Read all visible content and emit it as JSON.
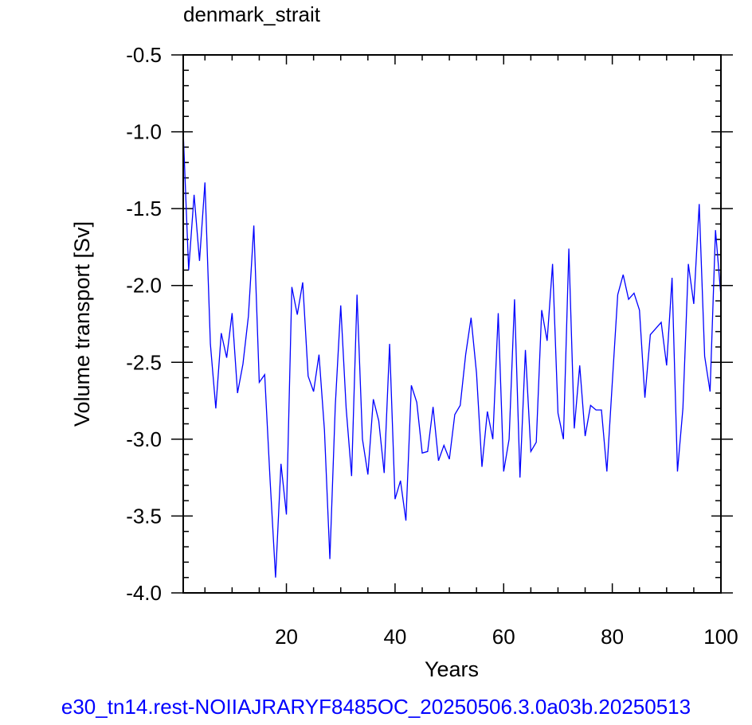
{
  "caption": "e30_tn14.rest-NOIIAJRARYF8485OC_20250506.3.0a03b.20250513",
  "colors": {
    "line": "#0000ff",
    "caption": "#0000ff",
    "axis": "#000000"
  },
  "chart_data": {
    "type": "line",
    "title": "denmark_strait",
    "xlabel": "Years",
    "ylabel": "Volume transport [Sv]",
    "xlim": [
      1,
      100
    ],
    "ylim": [
      -4.0,
      -0.5
    ],
    "xticks": [
      20,
      40,
      60,
      80,
      100
    ],
    "xtick_labels": [
      "20",
      "40",
      "60",
      "80",
      "100"
    ],
    "yticks": [
      -0.5,
      -1.0,
      -1.5,
      -2.0,
      -2.5,
      -3.0,
      -3.5,
      -4.0
    ],
    "ytick_labels": [
      "-0.5",
      "-1.0",
      "-1.5",
      "-2.0",
      "-2.5",
      "-3.0",
      "-3.5",
      "-4.0"
    ],
    "grid": false,
    "series": [
      {
        "x": [
          1,
          2,
          3,
          4,
          5,
          6,
          7,
          8,
          9,
          10,
          11,
          12,
          13,
          14,
          15,
          16,
          17,
          18,
          19,
          20,
          21,
          22,
          23,
          24,
          25,
          26,
          27,
          28,
          29,
          30,
          31,
          32,
          33,
          34,
          35,
          36,
          37,
          38,
          39,
          40,
          41,
          42,
          43,
          44,
          45,
          46,
          47,
          48,
          49,
          50,
          51,
          52,
          53,
          54,
          55,
          56,
          57,
          58,
          59,
          60,
          61,
          62,
          63,
          64,
          65,
          66,
          67,
          68,
          69,
          70,
          71,
          72,
          73,
          74,
          75,
          76,
          77,
          78,
          79,
          80,
          81,
          82,
          83,
          84,
          85,
          86,
          87,
          88,
          89,
          90,
          91,
          92,
          93,
          94,
          95,
          96,
          97,
          98,
          99,
          100
        ],
        "values": [
          -1.0,
          -1.9,
          -1.41,
          -1.84,
          -1.33,
          -2.38,
          -2.8,
          -2.31,
          -2.47,
          -2.18,
          -2.7,
          -2.51,
          -2.2,
          -1.61,
          -2.63,
          -2.58,
          -3.27,
          -3.9,
          -3.16,
          -3.49,
          -2.01,
          -2.19,
          -1.98,
          -2.59,
          -2.69,
          -2.45,
          -2.94,
          -3.78,
          -2.78,
          -2.13,
          -2.8,
          -3.24,
          -2.06,
          -3.0,
          -3.23,
          -2.74,
          -2.88,
          -3.22,
          -2.38,
          -3.39,
          -3.27,
          -3.53,
          -2.65,
          -2.76,
          -3.09,
          -3.08,
          -2.79,
          -3.14,
          -3.04,
          -3.13,
          -2.84,
          -2.78,
          -2.45,
          -2.21,
          -2.57,
          -3.18,
          -2.82,
          -3.0,
          -2.18,
          -3.21,
          -3.0,
          -2.09,
          -3.25,
          -2.42,
          -3.08,
          -3.02,
          -2.16,
          -2.36,
          -1.86,
          -2.83,
          -3.0,
          -1.76,
          -2.93,
          -2.52,
          -2.98,
          -2.78,
          -2.81,
          -2.81,
          -3.21,
          -2.63,
          -2.06,
          -1.93,
          -2.09,
          -2.05,
          -2.16,
          -2.73,
          -2.32,
          -2.28,
          -2.24,
          -2.52,
          -1.95,
          -3.21,
          -2.8,
          -1.86,
          -2.12,
          -1.47,
          -2.46,
          -2.69,
          -1.64,
          -2.07
        ]
      }
    ]
  }
}
